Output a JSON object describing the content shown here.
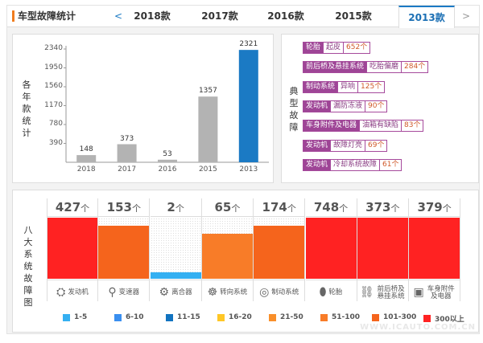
{
  "header": {
    "title": "车型故障统计",
    "prev": "<",
    "next": ">",
    "tabs": [
      "2018款",
      "2017款",
      "2016款",
      "2015款",
      "2013款"
    ],
    "active": "2013款"
  },
  "chart_data": {
    "type": "bar",
    "ylabel": "各年款统计",
    "categories": [
      "2018",
      "2017",
      "2016",
      "2015",
      "2013"
    ],
    "values": [
      148,
      373,
      53,
      1357,
      2321
    ],
    "yticks": [
      390,
      780,
      1170,
      1560,
      1950,
      2340
    ],
    "ylim": [
      0,
      2340
    ],
    "colors": [
      "#b3b3b3",
      "#b3b3b3",
      "#b3b3b3",
      "#b3b3b3",
      "#1b7ac4"
    ]
  },
  "faults": {
    "label": "典型故障",
    "items": [
      {
        "category": "轮胎",
        "desc": "起皮",
        "count": "652个"
      },
      {
        "category": "前后桥及悬挂系统",
        "desc": "吃胎偏磨",
        "count": "284个"
      },
      {
        "category": "制动系统",
        "desc": "异响",
        "count": "125个"
      },
      {
        "category": "发动机",
        "desc": "漏防冻液",
        "count": "90个"
      },
      {
        "category": "车身附件及电器",
        "desc": "油箱有缺陷",
        "count": "83个"
      },
      {
        "category": "发动机",
        "desc": "故障灯亮",
        "count": "69个"
      },
      {
        "category": "发动机",
        "desc": "冷却系统故障",
        "count": "61个"
      }
    ]
  },
  "systems": {
    "label": "八大系统故障图",
    "unit": "个",
    "items": [
      {
        "name": "发动机",
        "icon": "engine-icon",
        "glyph": "⛭",
        "count": 427,
        "color": "#ff2222",
        "level": 1
      },
      {
        "name": "变速器",
        "icon": "gear-shift-icon",
        "glyph": "⚲",
        "count": 153,
        "color": "#f5641c",
        "level": 0.87
      },
      {
        "name": "离合器",
        "icon": "clutch-icon",
        "glyph": "⚙",
        "count": 2,
        "color": "#35b0f2",
        "level": 0.1
      },
      {
        "name": "转向系统",
        "icon": "steering-wheel-icon",
        "glyph": "☸",
        "count": 65,
        "color": "#f87c28",
        "level": 0.74
      },
      {
        "name": "制动系统",
        "icon": "brake-disc-icon",
        "glyph": "◎",
        "count": 174,
        "color": "#f5641c",
        "level": 0.87
      },
      {
        "name": "轮胎",
        "icon": "tire-icon",
        "glyph": "⬮",
        "count": 748,
        "color": "#ff2222",
        "level": 1
      },
      {
        "name": "前后桥及悬挂系统",
        "icon": "axle-icon",
        "glyph": "⛓",
        "count": 373,
        "color": "#ff2222",
        "level": 1
      },
      {
        "name": "车身附件及电器",
        "icon": "battery-icon",
        "glyph": "▣",
        "count": 379,
        "color": "#ff2222",
        "level": 1
      }
    ]
  },
  "legend": [
    {
      "label": "1-5",
      "color": "#35b0f2"
    },
    {
      "label": "6-10",
      "color": "#3a8ff0"
    },
    {
      "label": "11-15",
      "color": "#1173c0"
    },
    {
      "label": "16-20",
      "color": "#ffc726"
    },
    {
      "label": "21-50",
      "color": "#f98f2a"
    },
    {
      "label": "51-100",
      "color": "#f87c28"
    },
    {
      "label": "101-300",
      "color": "#f5641c"
    },
    {
      "label": "300以上",
      "color": "#ff2222"
    }
  ],
  "watermark": "WWW.ICAUTO.COM.CN"
}
